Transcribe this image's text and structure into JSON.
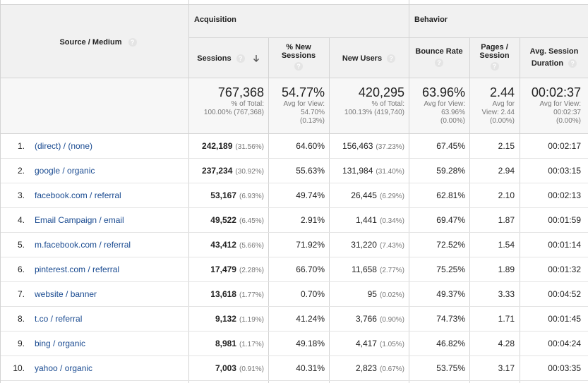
{
  "groups": {
    "acquisition": "Acquisition",
    "behavior": "Behavior"
  },
  "headers": {
    "source_medium": "Source / Medium",
    "sessions": "Sessions",
    "pct_new_sessions_line1": "% New",
    "pct_new_sessions_line2": "Sessions",
    "new_users": "New Users",
    "bounce_rate": "Bounce Rate",
    "pages_session_line1": "Pages /",
    "pages_session_line2": "Session",
    "avg_session_line1": "Avg. Session",
    "avg_session_line2": "Duration",
    "help_glyph": "?"
  },
  "summary": {
    "sessions": {
      "value": "767,368",
      "sub1": "% of Total:",
      "sub2": "100.00% (767,368)"
    },
    "pct_new": {
      "value": "54.77%",
      "sub1": "Avg for View:",
      "sub2": "54.70%",
      "sub3": "(0.13%)"
    },
    "new_users": {
      "value": "420,295",
      "sub1": "% of Total:",
      "sub2": "100.13% (419,740)"
    },
    "bounce": {
      "value": "63.96%",
      "sub1": "Avg for View:",
      "sub2": "63.96%",
      "sub3": "(0.00%)"
    },
    "pages": {
      "value": "2.44",
      "sub1": "Avg for",
      "sub2": "View: 2.44",
      "sub3": "(0.00%)"
    },
    "duration": {
      "value": "00:02:37",
      "sub1": "Avg for View:",
      "sub2": "00:02:37",
      "sub3": "(0.00%)"
    }
  },
  "rows": [
    {
      "idx": "1.",
      "source": "(direct) / (none)",
      "sessions": "242,189",
      "sessions_pct": "(31.56%)",
      "pct_new": "64.60%",
      "new_users": "156,463",
      "new_users_pct": "(37.23%)",
      "bounce": "67.45%",
      "pages": "2.15",
      "duration": "00:02:17"
    },
    {
      "idx": "2.",
      "source": "google / organic",
      "sessions": "237,234",
      "sessions_pct": "(30.92%)",
      "pct_new": "55.63%",
      "new_users": "131,984",
      "new_users_pct": "(31.40%)",
      "bounce": "59.28%",
      "pages": "2.94",
      "duration": "00:03:15"
    },
    {
      "idx": "3.",
      "source": "facebook.com / referral",
      "sessions": "53,167",
      "sessions_pct": "(6.93%)",
      "pct_new": "49.74%",
      "new_users": "26,445",
      "new_users_pct": "(6.29%)",
      "bounce": "62.81%",
      "pages": "2.10",
      "duration": "00:02:13"
    },
    {
      "idx": "4.",
      "source": "Email Campaign / email",
      "sessions": "49,522",
      "sessions_pct": "(6.45%)",
      "pct_new": "2.91%",
      "new_users": "1,441",
      "new_users_pct": "(0.34%)",
      "bounce": "69.47%",
      "pages": "1.87",
      "duration": "00:01:59"
    },
    {
      "idx": "5.",
      "source": "m.facebook.com / referral",
      "sessions": "43,412",
      "sessions_pct": "(5.66%)",
      "pct_new": "71.92%",
      "new_users": "31,220",
      "new_users_pct": "(7.43%)",
      "bounce": "72.52%",
      "pages": "1.54",
      "duration": "00:01:14"
    },
    {
      "idx": "6.",
      "source": "pinterest.com / referral",
      "sessions": "17,479",
      "sessions_pct": "(2.28%)",
      "pct_new": "66.70%",
      "new_users": "11,658",
      "new_users_pct": "(2.77%)",
      "bounce": "75.25%",
      "pages": "1.89",
      "duration": "00:01:32"
    },
    {
      "idx": "7.",
      "source": "website / banner",
      "sessions": "13,618",
      "sessions_pct": "(1.77%)",
      "pct_new": "0.70%",
      "new_users": "95",
      "new_users_pct": "(0.02%)",
      "bounce": "49.37%",
      "pages": "3.33",
      "duration": "00:04:52"
    },
    {
      "idx": "8.",
      "source": "t.co / referral",
      "sessions": "9,132",
      "sessions_pct": "(1.19%)",
      "pct_new": "41.24%",
      "new_users": "3,766",
      "new_users_pct": "(0.90%)",
      "bounce": "74.73%",
      "pages": "1.71",
      "duration": "00:01:45"
    },
    {
      "idx": "9.",
      "source": "bing / organic",
      "sessions": "8,981",
      "sessions_pct": "(1.17%)",
      "pct_new": "49.18%",
      "new_users": "4,417",
      "new_users_pct": "(1.05%)",
      "bounce": "46.82%",
      "pages": "4.28",
      "duration": "00:04:24"
    },
    {
      "idx": "10.",
      "source": "yahoo / organic",
      "sessions": "7,003",
      "sessions_pct": "(0.91%)",
      "pct_new": "40.31%",
      "new_users": "2,823",
      "new_users_pct": "(0.67%)",
      "bounce": "53.75%",
      "pages": "3.17",
      "duration": "00:03:35"
    }
  ]
}
